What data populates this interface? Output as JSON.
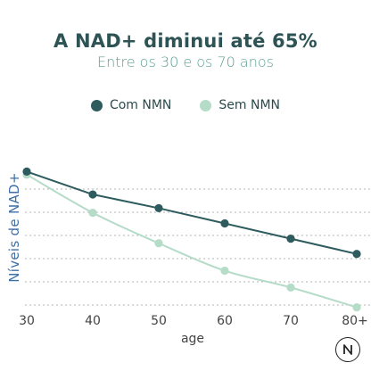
{
  "colors": {
    "title": "#2d5355",
    "subtitle": "#5aa093",
    "ylabel": "#3f6fa6",
    "com": "#2d5b5e",
    "sem": "#b5dcc8",
    "grid": "#9b9b9b",
    "axis_text": "#444444"
  },
  "chart_data": {
    "type": "line",
    "title": "A NAD+ diminui até 65%",
    "subtitle": "Entre os 30 e os 70 anos",
    "xlabel": "age",
    "ylabel": "Níveis de NAD+",
    "categories": [
      "30",
      "40",
      "50",
      "60",
      "70",
      "80+"
    ],
    "ylim": [
      0,
      100
    ],
    "grid": "horizontal dashed",
    "legend_position": "top-center",
    "series": [
      {
        "name": "Com NMN",
        "values": [
          91,
          76,
          67,
          57,
          47,
          37
        ]
      },
      {
        "name": "Sem NMN",
        "values": [
          89,
          64,
          44,
          26,
          15,
          2
        ]
      }
    ]
  },
  "logo": {
    "name": "n-logo-icon"
  }
}
